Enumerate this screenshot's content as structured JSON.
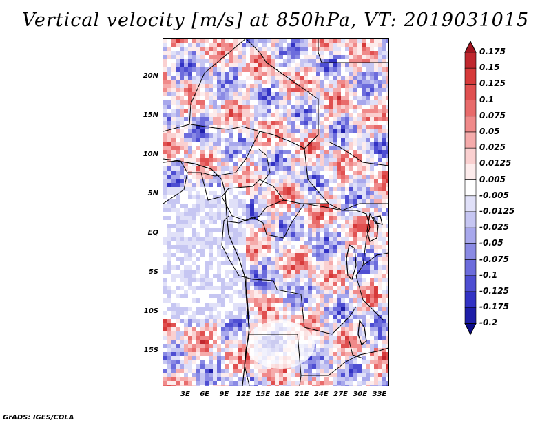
{
  "title": "Vertical velocity [m/s] at 850hPa, VT: 2019031015",
  "footer": "GrADS: IGES/COLA",
  "map": {
    "lat_range": [
      -19.5,
      25
    ],
    "lon_range": [
      -0.5,
      34.5
    ],
    "lat_ticks": [
      {
        "value": 20,
        "label": "20N"
      },
      {
        "value": 15,
        "label": "15N"
      },
      {
        "value": 10,
        "label": "10N"
      },
      {
        "value": 5,
        "label": "5N"
      },
      {
        "value": 0,
        "label": "EQ"
      },
      {
        "value": -5,
        "label": "5S"
      },
      {
        "value": -10,
        "label": "10S"
      },
      {
        "value": -15,
        "label": "15S"
      }
    ],
    "lon_ticks": [
      {
        "value": 3,
        "label": "3E"
      },
      {
        "value": 6,
        "label": "6E"
      },
      {
        "value": 9,
        "label": "9E"
      },
      {
        "value": 12,
        "label": "12E"
      },
      {
        "value": 15,
        "label": "15E"
      },
      {
        "value": 18,
        "label": "18E"
      },
      {
        "value": 21,
        "label": "21E"
      },
      {
        "value": 24,
        "label": "24E"
      },
      {
        "value": 27,
        "label": "27E"
      },
      {
        "value": 30,
        "label": "30E"
      },
      {
        "value": 33,
        "label": "33E"
      }
    ]
  },
  "colorbar": {
    "labels": [
      "0.175",
      "0.15",
      "0.125",
      "0.1",
      "0.075",
      "0.05",
      "0.025",
      "0.0125",
      "0.005",
      "-0.005",
      "-0.0125",
      "-0.025",
      "-0.05",
      "-0.075",
      "-0.1",
      "-0.125",
      "-0.175",
      "-0.2"
    ],
    "colors": [
      "#a0141e",
      "#c0272e",
      "#d63a3a",
      "#e05050",
      "#e86b6b",
      "#f08a8a",
      "#f5abab",
      "#fad0d0",
      "#fdecec",
      "#ffffff",
      "#e0e0f8",
      "#c6c6f2",
      "#a8a8ec",
      "#8a8ae4",
      "#6c6cdc",
      "#4e4ed2",
      "#3232c4",
      "#1e1ea8",
      "#0c0c88"
    ],
    "top_color": "#a0141e",
    "bottom_color": "#0c0c88"
  }
}
